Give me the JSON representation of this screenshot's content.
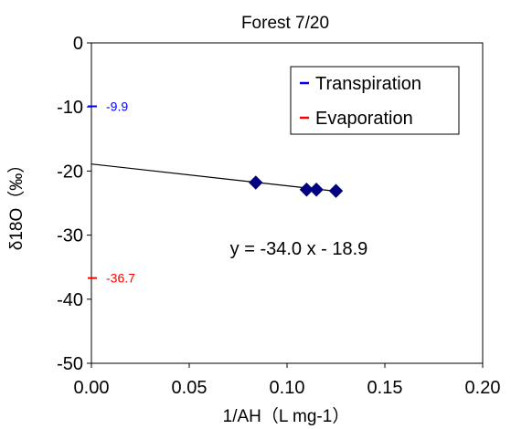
{
  "chart_data": {
    "type": "scatter",
    "title": "Forest 7/20",
    "xlabel": "1/AH（L mg-1）",
    "ylabel": "δ18O（‰）",
    "xlim": [
      0,
      0.2
    ],
    "ylim": [
      -50,
      0
    ],
    "xticks": [
      0,
      0.05,
      0.1,
      0.15,
      0.2
    ],
    "xtick_labels": [
      "0.00",
      "0.05",
      "0.10",
      "0.15",
      "0.20"
    ],
    "yticks": [
      0,
      -10,
      -20,
      -30,
      -40,
      -50
    ],
    "ytick_labels": [
      "0",
      "-10",
      "-20",
      "-30",
      "-40",
      "-50"
    ],
    "grid": false,
    "legend_position": "top-right",
    "series": [
      {
        "marker": "diamond",
        "color": "#000080",
        "points": [
          {
            "x": 0.084,
            "y": -21.8
          },
          {
            "x": 0.11,
            "y": -22.9
          },
          {
            "x": 0.115,
            "y": -22.9
          },
          {
            "x": 0.125,
            "y": -23.1
          }
        ]
      }
    ],
    "trendline": {
      "slope": -34.0,
      "intercept": -18.9,
      "x_range": [
        0,
        0.125
      ],
      "equation_label": "y = -34.0 x - 18.9",
      "color": "#000000"
    },
    "reference_marks": [
      {
        "name": "Transpiration",
        "y": -9.9,
        "label": "-9.9",
        "color": "#0000ff"
      },
      {
        "name": "Evaporation",
        "y": -36.7,
        "label": "-36.7",
        "color": "#ff0000"
      }
    ],
    "legend": [
      {
        "label": "Transpiration",
        "color": "#0000ff"
      },
      {
        "label": "Evaporation",
        "color": "#ff0000"
      }
    ]
  }
}
